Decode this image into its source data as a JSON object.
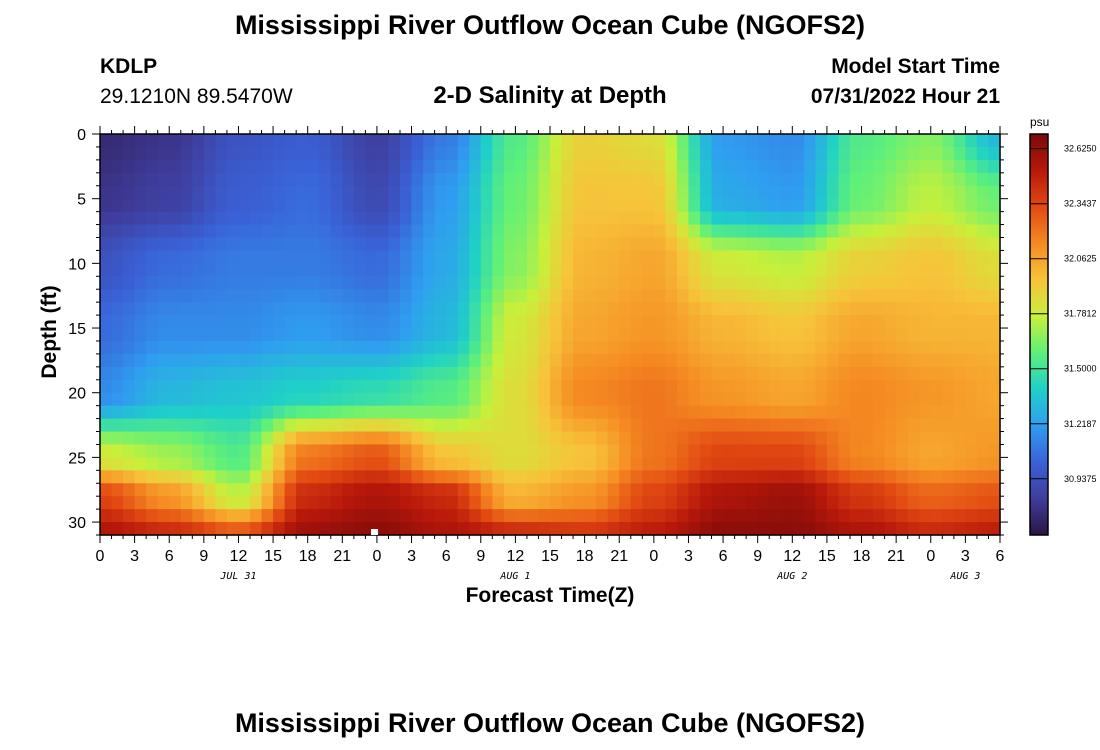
{
  "header": {
    "title": "Mississippi River Outflow Ocean Cube (NGOFS2)",
    "station_id": "KDLP",
    "station_coords": "29.1210N  89.5470W",
    "plot_title": "2-D Salinity at Depth",
    "model_start_label": "Model Start Time",
    "model_start_time": "07/31/2022 Hour 21"
  },
  "footer": {
    "title": "Mississippi River Outflow Ocean Cube (NGOFS2)"
  },
  "colors": {
    "colormap": [
      "#2a1544",
      "#3f3d9c",
      "#3a62d8",
      "#2f9ef0",
      "#1fd0c8",
      "#5ef07a",
      "#c8f03a",
      "#f7c33a",
      "#f58a22",
      "#e24a12",
      "#b8180a",
      "#7a0a0a"
    ]
  },
  "chart_data": {
    "type": "heatmap",
    "title": "2-D Salinity at Depth",
    "xlabel": "Forecast Time(Z)",
    "ylabel": "Depth (ft)",
    "x_tick_labels": [
      "0",
      "3",
      "6",
      "9",
      "12",
      "15",
      "18",
      "21",
      "0",
      "3",
      "6",
      "9",
      "12",
      "15",
      "18",
      "21",
      "0",
      "3",
      "6",
      "9",
      "12",
      "15",
      "18",
      "21",
      "0",
      "3",
      "6"
    ],
    "x_hours": [
      0,
      3,
      6,
      9,
      12,
      15,
      18,
      21,
      24,
      27,
      30,
      33,
      36,
      39,
      42,
      45,
      48,
      51,
      54,
      57,
      60,
      63,
      66,
      69,
      72,
      75,
      78
    ],
    "date_labels": [
      {
        "text": "JUL 31",
        "hour": 12
      },
      {
        "text": "AUG 1",
        "hour": 36
      },
      {
        "text": "AUG 2",
        "hour": 60
      },
      {
        "text": "AUG 3",
        "hour": 75
      }
    ],
    "y_ticks": [
      0,
      5,
      10,
      15,
      20,
      25,
      30
    ],
    "ylim": [
      0,
      31
    ],
    "xlim": [
      0,
      78
    ],
    "colorbar": {
      "unit": "psu",
      "ticks": [
        "32.6250",
        "32.3437",
        "32.0625",
        "31.7812",
        "31.5000",
        "31.2187",
        "30.9375"
      ],
      "range": [
        30.65,
        32.7
      ]
    },
    "salinity_knots": {
      "hours": [
        0,
        6,
        12,
        18,
        24,
        30,
        36,
        42,
        48,
        54,
        60,
        66,
        72,
        78
      ],
      "depths": [
        0,
        5,
        10,
        15,
        20,
        25,
        28,
        31
      ],
      "values": [
        [
          30.75,
          30.8,
          30.95,
          31.0,
          30.85,
          31.1,
          31.55,
          31.9,
          31.85,
          31.2,
          31.15,
          31.55,
          31.65,
          31.3
        ],
        [
          30.8,
          30.85,
          31.0,
          31.05,
          30.9,
          31.2,
          31.6,
          31.95,
          31.95,
          31.25,
          31.2,
          31.6,
          31.75,
          31.6
        ],
        [
          30.95,
          31.05,
          31.1,
          31.1,
          31.05,
          31.25,
          31.65,
          32.0,
          32.05,
          31.8,
          31.75,
          31.9,
          31.95,
          31.85
        ],
        [
          31.05,
          31.15,
          31.15,
          31.2,
          31.15,
          31.3,
          31.8,
          32.05,
          32.1,
          32.0,
          31.95,
          32.05,
          32.0,
          32.0
        ],
        [
          31.15,
          31.3,
          31.35,
          31.4,
          31.45,
          31.55,
          31.85,
          32.15,
          32.2,
          32.1,
          32.05,
          32.15,
          32.1,
          32.05
        ],
        [
          31.8,
          31.7,
          31.55,
          32.2,
          32.3,
          31.95,
          31.85,
          31.95,
          32.2,
          32.35,
          32.35,
          32.15,
          32.05,
          32.1
        ],
        [
          32.35,
          32.1,
          31.75,
          32.45,
          32.55,
          32.45,
          32.0,
          32.1,
          32.35,
          32.55,
          32.6,
          32.4,
          32.25,
          32.3
        ],
        [
          32.55,
          32.45,
          32.3,
          32.6,
          32.65,
          32.55,
          32.45,
          32.4,
          32.5,
          32.65,
          32.65,
          32.55,
          32.45,
          32.5
        ]
      ]
    }
  }
}
